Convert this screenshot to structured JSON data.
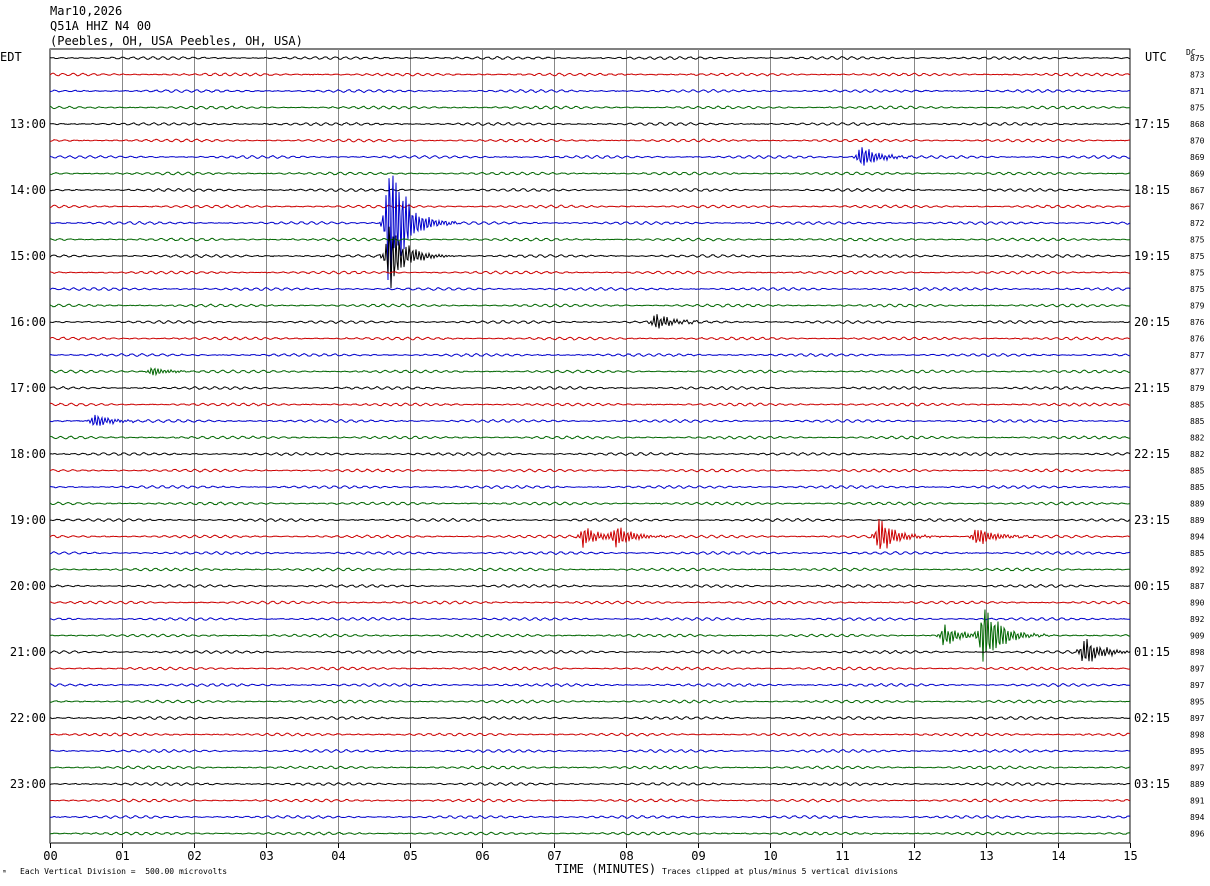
{
  "header": {
    "date": "Mar10,2026",
    "station": "Q51A HHZ N4 00",
    "location": "(Peebles, OH, USA Peebles, OH, USA)"
  },
  "left_timezone": "EDT",
  "right_timezone": "UTC",
  "dc_label": "DC",
  "footer": {
    "corner_mark": "ᵐ",
    "scale_note": "Each Vertical Division =  500.00 microvolts",
    "clip_note": "Traces clipped at plus/minus 5 vertical divisions"
  },
  "trace_colors": [
    "#000000",
    "#cc0000",
    "#0000cc",
    "#006600"
  ],
  "chart_data": {
    "type": "line",
    "xlabel": "TIME (MINUTES)",
    "xlim": [
      0,
      15
    ],
    "x_ticks": [
      "00",
      "01",
      "02",
      "03",
      "04",
      "05",
      "06",
      "07",
      "08",
      "09",
      "10",
      "11",
      "12",
      "13",
      "14",
      "15"
    ],
    "left_hour_labels": [
      "13:00",
      "14:00",
      "15:00",
      "16:00",
      "17:00",
      "18:00",
      "19:00",
      "20:00",
      "21:00",
      "22:00",
      "23:00"
    ],
    "right_hour_labels": [
      "17:15",
      "18:15",
      "19:15",
      "20:15",
      "21:15",
      "22:15",
      "23:15",
      "00:15",
      "01:15",
      "02:15",
      "03:15"
    ],
    "dc_values": [
      875,
      873,
      871,
      875,
      868,
      870,
      869,
      869,
      867,
      867,
      872,
      875,
      875,
      875,
      875,
      879,
      876,
      876,
      877,
      877,
      879,
      885,
      885,
      882,
      882,
      885,
      885,
      889,
      889,
      894,
      885,
      892,
      887,
      890,
      892,
      909,
      898,
      897,
      897,
      895,
      897,
      898,
      895,
      897,
      889,
      891,
      894,
      896
    ],
    "grid": true,
    "events": [
      {
        "trace": 6,
        "minute": 11.25,
        "amplitude": 0.9
      },
      {
        "trace": 10,
        "minute": 4.7,
        "amplitude": 5
      },
      {
        "trace": 12,
        "minute": 4.7,
        "amplitude": 2.5
      },
      {
        "trace": 16,
        "minute": 8.4,
        "amplitude": 0.6
      },
      {
        "trace": 19,
        "minute": 1.4,
        "amplitude": 0.3
      },
      {
        "trace": 22,
        "minute": 0.6,
        "amplitude": 0.5
      },
      {
        "trace": 29,
        "minute": 7.4,
        "amplitude": 0.8
      },
      {
        "trace": 29,
        "minute": 7.85,
        "amplitude": 0.8
      },
      {
        "trace": 29,
        "minute": 11.5,
        "amplitude": 1.3
      },
      {
        "trace": 29,
        "minute": 12.85,
        "amplitude": 0.8
      },
      {
        "trace": 35,
        "minute": 12.4,
        "amplitude": 0.8
      },
      {
        "trace": 35,
        "minute": 12.95,
        "amplitude": 2.5
      },
      {
        "trace": 36,
        "minute": 14.35,
        "amplitude": 1.2
      }
    ]
  }
}
